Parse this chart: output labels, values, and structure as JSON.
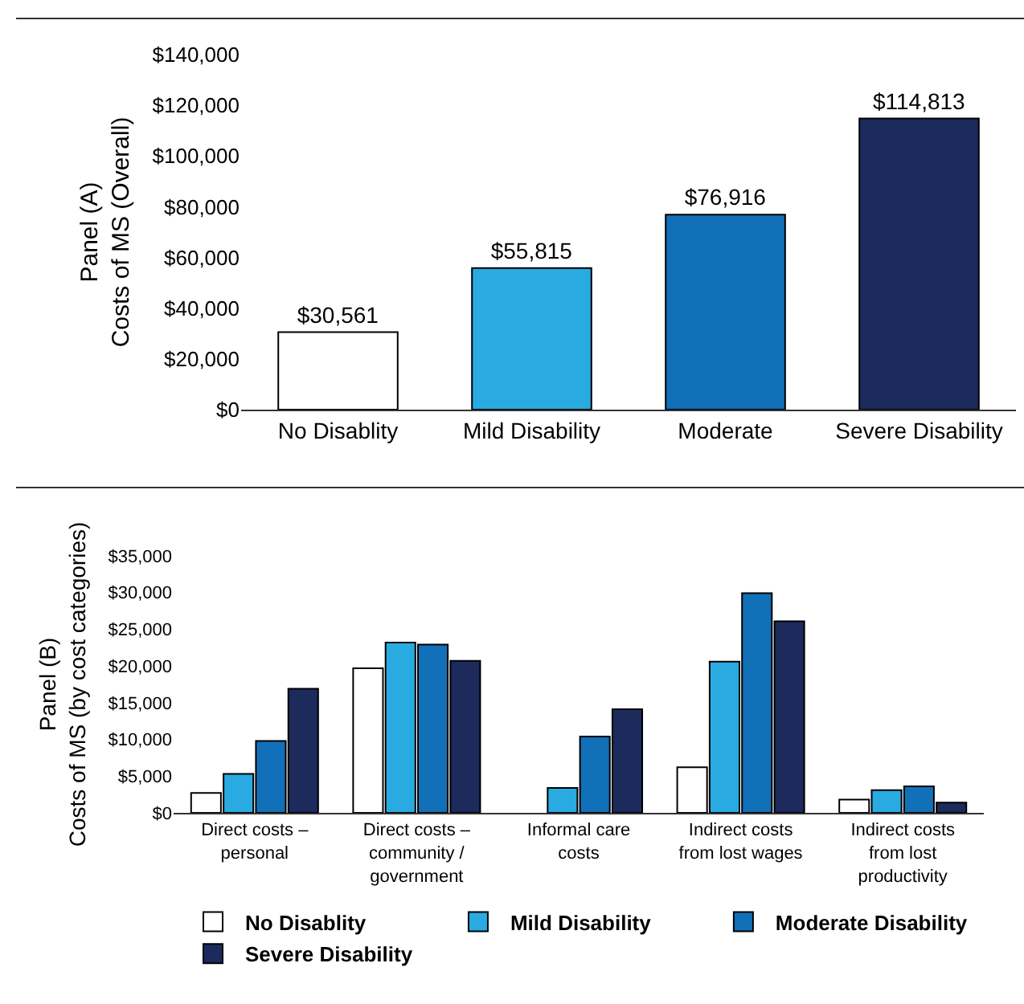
{
  "chart_data": [
    {
      "type": "bar",
      "ylabel": "Panel (A)\nCosts of MS (Overall)",
      "categories": [
        "No Disablity",
        "Mild Disability",
        "Moderate",
        "Severe Disability"
      ],
      "values": [
        30561,
        55815,
        76916,
        114813
      ],
      "colors": [
        "#ffffff",
        "#29abe2",
        "#1170b8",
        "#1c2a5c"
      ],
      "value_labels": [
        "$30,561",
        "$55,815",
        "$76,916",
        "$114,813"
      ],
      "ylim": [
        0,
        140000
      ],
      "yticks": [
        {
          "value": 0,
          "label": "$0"
        },
        {
          "value": 20000,
          "label": "$20,000"
        },
        {
          "value": 40000,
          "label": "$40,000"
        },
        {
          "value": 60000,
          "label": "$60,000"
        },
        {
          "value": 80000,
          "label": "$80,000"
        },
        {
          "value": 100000,
          "label": "$100,000"
        },
        {
          "value": 120000,
          "label": "$120,000"
        },
        {
          "value": 140000,
          "label": "$140,000"
        }
      ],
      "grid": false,
      "legend": false
    },
    {
      "type": "bar",
      "ylabel": "Panel (B)\nCosts of MS (by cost categories)",
      "categories": [
        "Direct costs –\npersonal",
        "Direct costs –\ncommunity /\ngovernment",
        "Informal care\ncosts",
        "Indirect costs\nfrom lost wages",
        "Indirect costs\nfrom lost\nproductivity"
      ],
      "series": [
        {
          "name": "No Disablity",
          "color": "#ffffff",
          "values": [
            2700,
            19700,
            null,
            6200,
            1800
          ]
        },
        {
          "name": "Mild Disability",
          "color": "#29abe2",
          "values": [
            5300,
            23200,
            3400,
            20600,
            3100
          ]
        },
        {
          "name": "Moderate Disability",
          "color": "#1170b8",
          "values": [
            9800,
            22900,
            10400,
            29900,
            3600
          ]
        },
        {
          "name": "Severe Disability",
          "color": "#1c2a5c",
          "values": [
            16900,
            20700,
            14100,
            26100,
            1400
          ]
        }
      ],
      "ylim": [
        0,
        35000
      ],
      "yticks": [
        {
          "value": 0,
          "label": "$0"
        },
        {
          "value": 5000,
          "label": "$5,000"
        },
        {
          "value": 10000,
          "label": "$10,000"
        },
        {
          "value": 15000,
          "label": "$15,000"
        },
        {
          "value": 20000,
          "label": "$20,000"
        },
        {
          "value": 25000,
          "label": "$25,000"
        },
        {
          "value": 30000,
          "label": "$30,000"
        },
        {
          "value": 35000,
          "label": "$35,000"
        }
      ],
      "grid": false,
      "legend": "bottom"
    }
  ]
}
